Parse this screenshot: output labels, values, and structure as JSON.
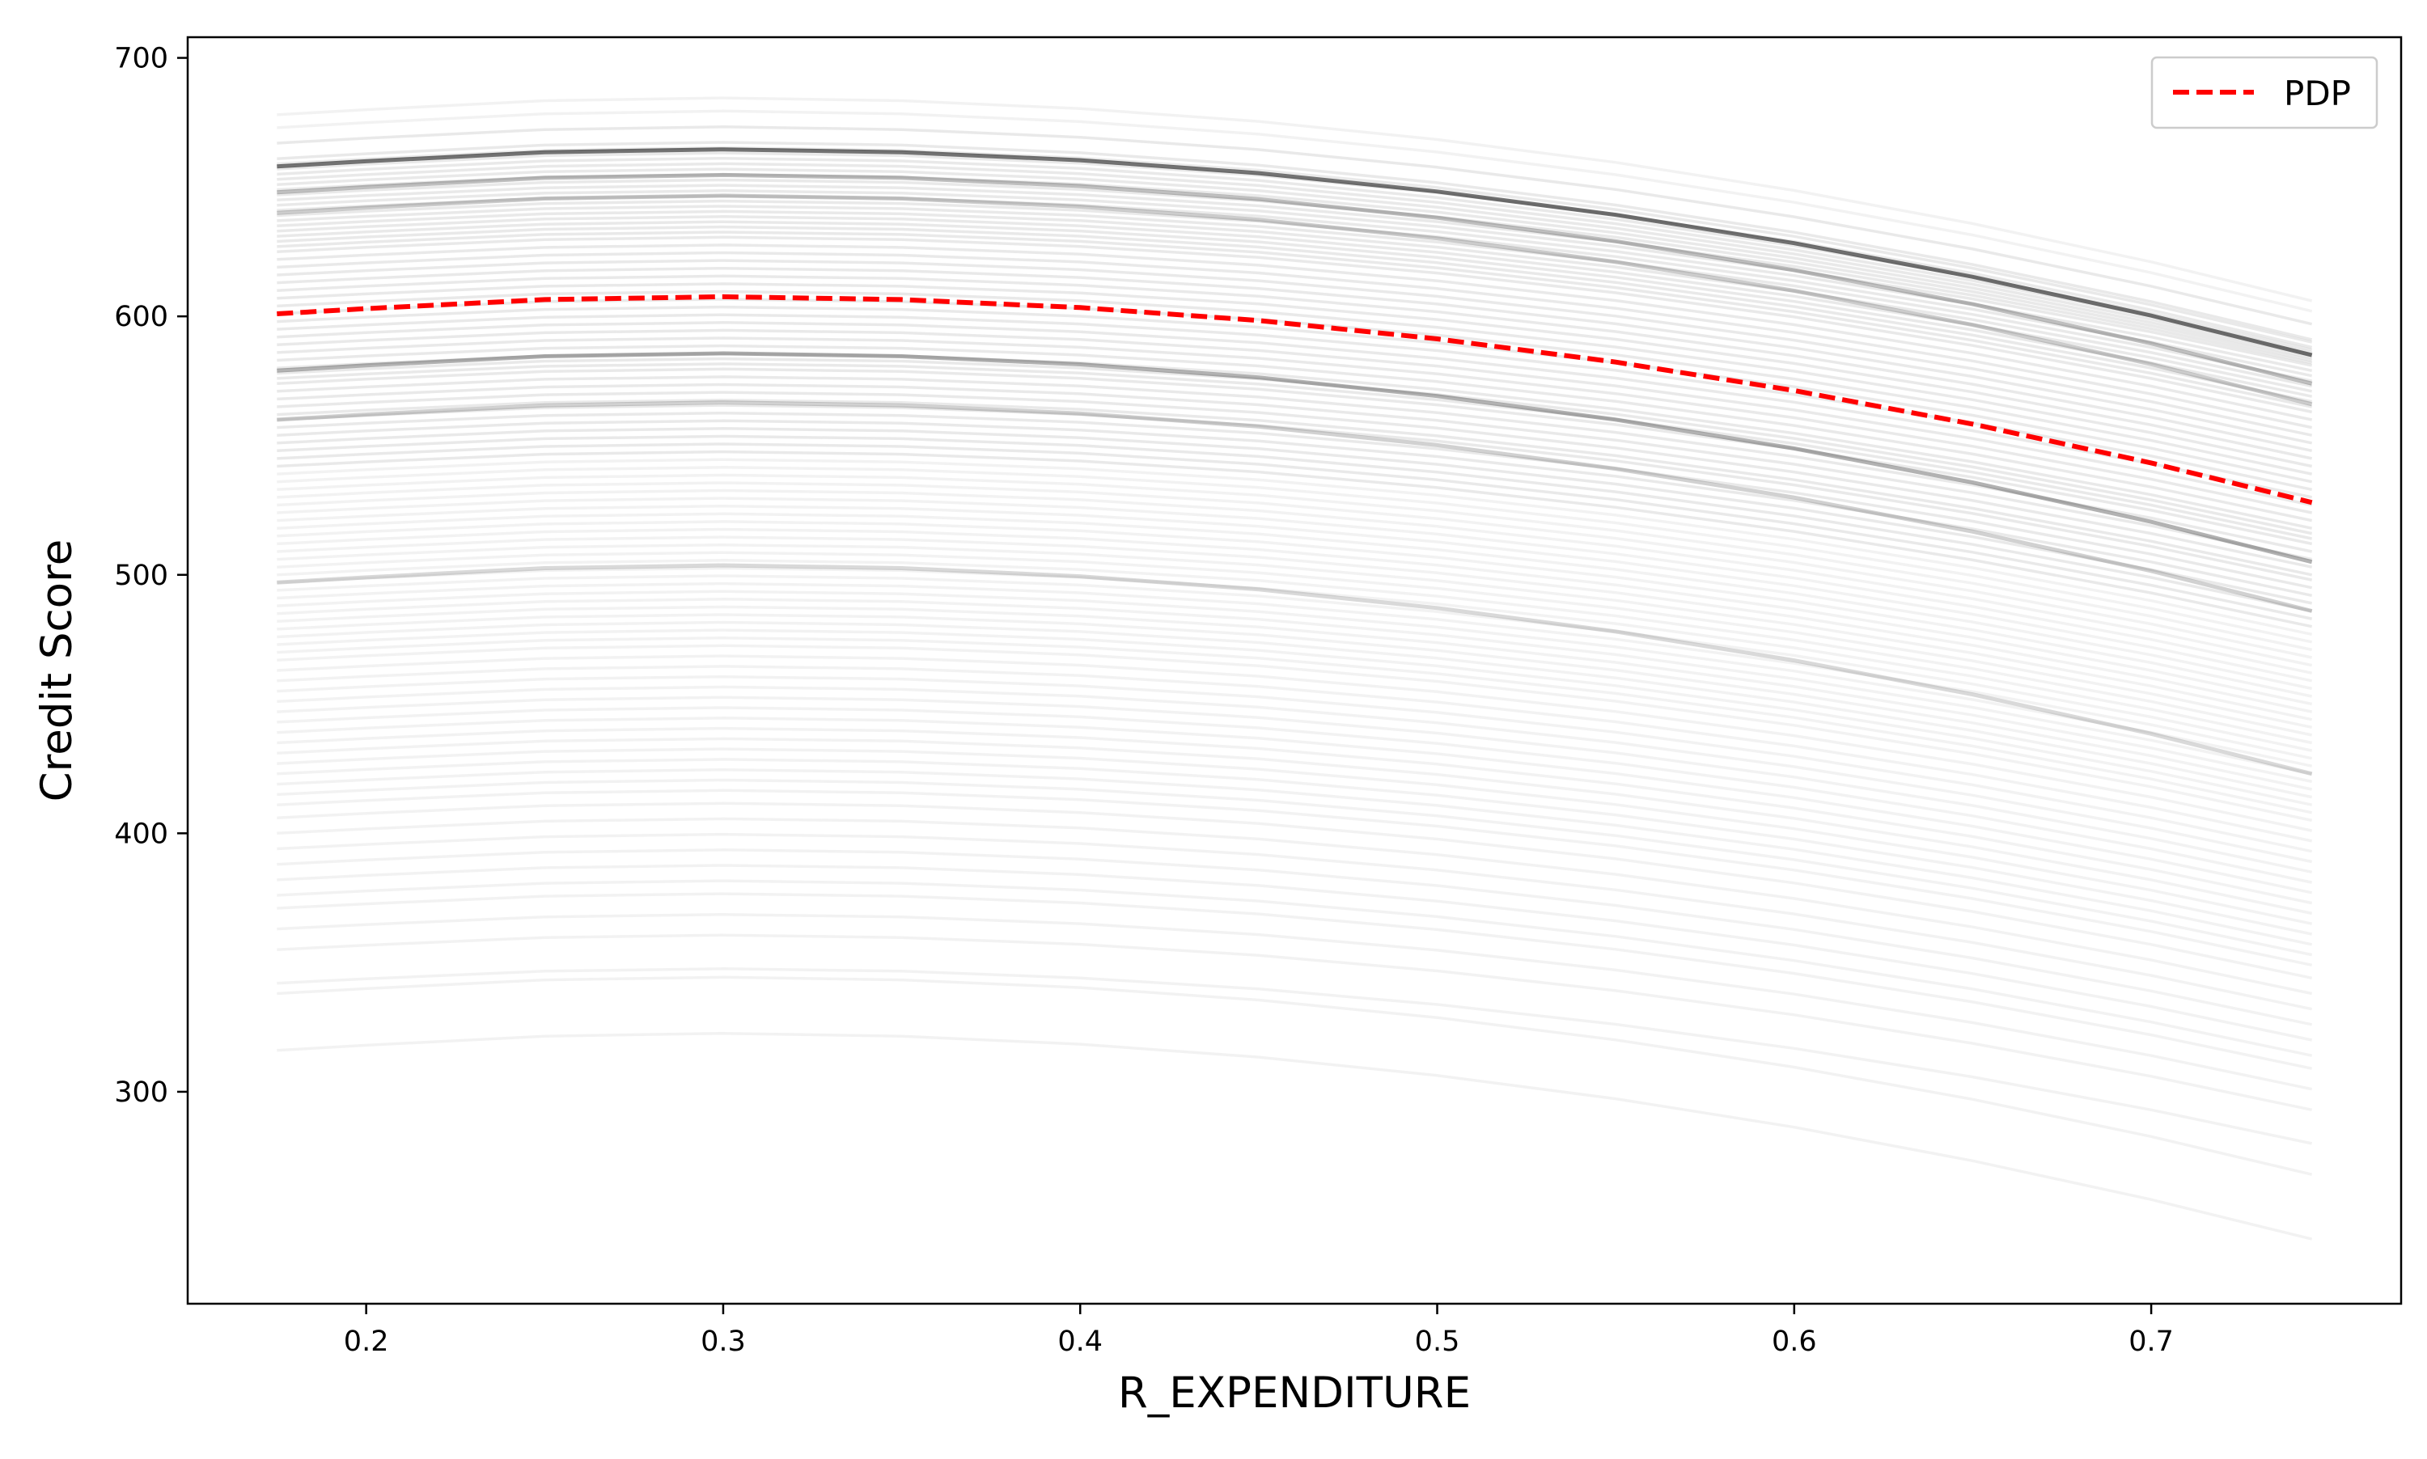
{
  "chart_data": {
    "type": "line",
    "title": "",
    "xlabel": "R_EXPENDITURE",
    "ylabel": "Credit Score",
    "xlim": [
      0.15,
      0.77
    ],
    "ylim": [
      218,
      708
    ],
    "x_ticks": [
      0.2,
      0.3,
      0.4,
      0.5,
      0.6,
      0.7
    ],
    "x_tick_labels": [
      "0.2",
      "0.3",
      "0.4",
      "0.5",
      "0.6",
      "0.7"
    ],
    "y_ticks": [
      300,
      400,
      500,
      600,
      700
    ],
    "y_tick_labels": [
      "300",
      "400",
      "500",
      "600",
      "700"
    ],
    "grid": false,
    "legend": {
      "placement": "top-right",
      "entries": [
        {
          "label": "PDP",
          "color": "#ff0000",
          "style": "dashed"
        }
      ]
    },
    "series": [
      {
        "name": "PDP",
        "color": "#ff0000",
        "style": "dashed",
        "x": [
          0.175,
          0.2,
          0.25,
          0.3,
          0.35,
          0.4,
          0.45,
          0.5,
          0.55,
          0.6,
          0.65,
          0.7,
          0.745
        ],
        "y": [
          601,
          603,
          606.5,
          607.6,
          606.5,
          603.4,
          598.4,
          591.3,
          582.3,
          571.3,
          558.3,
          543.3,
          528
        ]
      }
    ],
    "ice_lines": {
      "color": "#000000",
      "x": [
        0.175,
        0.2,
        0.25,
        0.3,
        0.35,
        0.4,
        0.45,
        0.5,
        0.55,
        0.6,
        0.65,
        0.7,
        0.745
      ],
      "start_values": [
        678,
        673,
        667,
        661,
        659,
        657,
        655,
        653,
        651,
        649,
        647,
        645,
        643,
        641,
        639,
        637,
        635,
        633,
        631,
        629,
        627,
        625,
        622,
        619,
        616,
        613,
        610,
        607,
        604,
        601,
        598,
        595,
        592,
        589,
        586,
        583,
        580,
        578,
        576,
        574,
        571,
        568,
        565,
        562,
        560,
        557,
        554,
        551,
        548,
        545,
        542,
        539,
        536,
        533,
        530,
        527,
        524,
        521,
        518,
        515,
        512,
        509,
        506,
        503,
        500,
        497,
        494,
        491,
        488,
        485,
        482,
        479,
        476,
        473,
        470,
        467,
        463,
        459,
        455,
        451,
        447,
        443,
        439,
        435,
        431,
        427,
        423,
        419,
        415,
        411,
        406,
        400,
        394,
        388,
        382,
        376,
        371,
        363,
        355,
        342,
        338,
        316
      ],
      "end_values": [
        606,
        602,
        597,
        591,
        590,
        588,
        587,
        586,
        585,
        584,
        583,
        582,
        581,
        579,
        577,
        575,
        573,
        571,
        569,
        567,
        565,
        563,
        560,
        557,
        554,
        551,
        548,
        545,
        542,
        539,
        536,
        533,
        530,
        527,
        524,
        521,
        518,
        516,
        514,
        512,
        509,
        506,
        503,
        500,
        498,
        495,
        492,
        489,
        486,
        483,
        480,
        477,
        474,
        471,
        468,
        465,
        462,
        459,
        456,
        453,
        450,
        447,
        444,
        441,
        438,
        435,
        432,
        429,
        426,
        423,
        420,
        417,
        414,
        411,
        408,
        405,
        401,
        397,
        393,
        389,
        385,
        381,
        377,
        373,
        369,
        365,
        361,
        357,
        353,
        349,
        344,
        338,
        332,
        326,
        320,
        314,
        309,
        301,
        293,
        280,
        268,
        243
      ],
      "emphasis": [
        {
          "start": 658,
          "end": 585,
          "alpha": 0.55
        },
        {
          "start": 648,
          "end": 574,
          "alpha": 0.25
        },
        {
          "start": 640,
          "end": 566,
          "alpha": 0.2
        },
        {
          "start": 579,
          "end": 505,
          "alpha": 0.3
        },
        {
          "start": 560,
          "end": 486,
          "alpha": 0.18
        },
        {
          "start": 497,
          "end": 423,
          "alpha": 0.15
        }
      ]
    }
  }
}
